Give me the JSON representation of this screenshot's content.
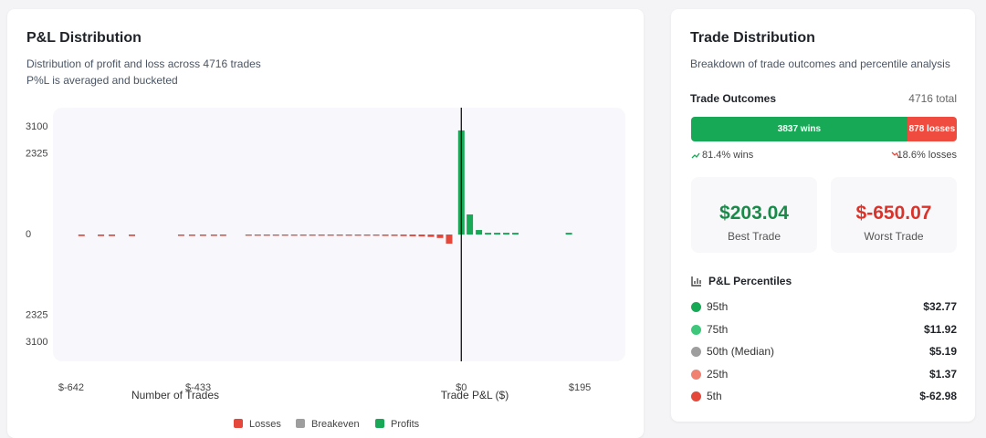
{
  "pnl_card": {
    "title": "P&L Distribution",
    "subtitle_lines": [
      "Distribution of profit and loss across 4716 trades",
      "P%L is averaged and bucketed"
    ]
  },
  "chart_data": {
    "type": "bar",
    "x_label": "Trade P&L ($)",
    "y_label": "Number of Trades",
    "xlim": [
      -672,
      270
    ],
    "xticks": [
      {
        "value": -642,
        "label": "$-642"
      },
      {
        "value": -433,
        "label": "$-433"
      },
      {
        "value": 0,
        "label": "$0"
      },
      {
        "value": 195,
        "label": "$195"
      }
    ],
    "ylim": [
      -3650,
      3650
    ],
    "yticks": [
      3100,
      2325,
      0,
      {
        "value": -2325,
        "label": "2325"
      },
      {
        "value": -3100,
        "label": "3100"
      }
    ],
    "legend": "bottom",
    "series": [
      {
        "name": "Losses",
        "color": "#e5483b",
        "x": [
          -625,
          -593,
          -575,
          -542,
          -461,
          -443,
          -425,
          -407,
          -392,
          -350,
          -335,
          -320,
          -305,
          -290,
          -275,
          -260,
          -245,
          -230,
          -215,
          -200,
          -185,
          -170,
          -155,
          -140,
          -125,
          -110,
          -95,
          -80,
          -65,
          -50,
          -35,
          -20
        ],
        "values": [
          -45,
          -45,
          -45,
          -45,
          -40,
          -40,
          -40,
          -40,
          -40,
          -35,
          -35,
          -35,
          -35,
          -35,
          -35,
          -35,
          -35,
          -35,
          -35,
          -35,
          -35,
          -35,
          -35,
          -35,
          -40,
          -40,
          -45,
          -50,
          -55,
          -70,
          -100,
          -263
        ]
      },
      {
        "name": "Breakeven",
        "color": "#9e9e9e",
        "x": [],
        "values": []
      },
      {
        "name": "Profits",
        "color": "#18a957",
        "x": [
          0,
          14,
          29,
          44,
          59,
          74,
          89,
          177
        ],
        "values": [
          2995,
          578,
          130,
          50,
          50,
          50,
          50,
          50
        ]
      }
    ]
  },
  "trade_card": {
    "title": "Trade Distribution",
    "subtitle": "Breakdown of trade outcomes and percentile analysis",
    "outcomes_heading": "Trade Outcomes",
    "total": "4716 total",
    "segments": [
      {
        "value": 3837,
        "label": "3837 wins",
        "color": "#18a957"
      },
      {
        "value": 878,
        "label": "878 losses",
        "color": "#ef4b3f"
      }
    ],
    "win_pct": "81.4% wins",
    "loss_pct": "18.6% losses",
    "best": {
      "value": "$203.04",
      "label": "Best Trade"
    },
    "worst": {
      "value": "$-650.07",
      "label": "Worst Trade"
    },
    "percentiles_heading": "P&L Percentiles",
    "percentiles": [
      {
        "name": "95th",
        "value": "$32.77",
        "color": "#18a957"
      },
      {
        "name": "75th",
        "value": "$11.92",
        "color": "#3ec77a"
      },
      {
        "name": "50th (Median)",
        "value": "$5.19",
        "color": "#9e9e9e"
      },
      {
        "name": "25th",
        "value": "$1.37",
        "color": "#f08070"
      },
      {
        "name": "5th",
        "value": "$-62.98",
        "color": "#e5483b"
      }
    ]
  }
}
